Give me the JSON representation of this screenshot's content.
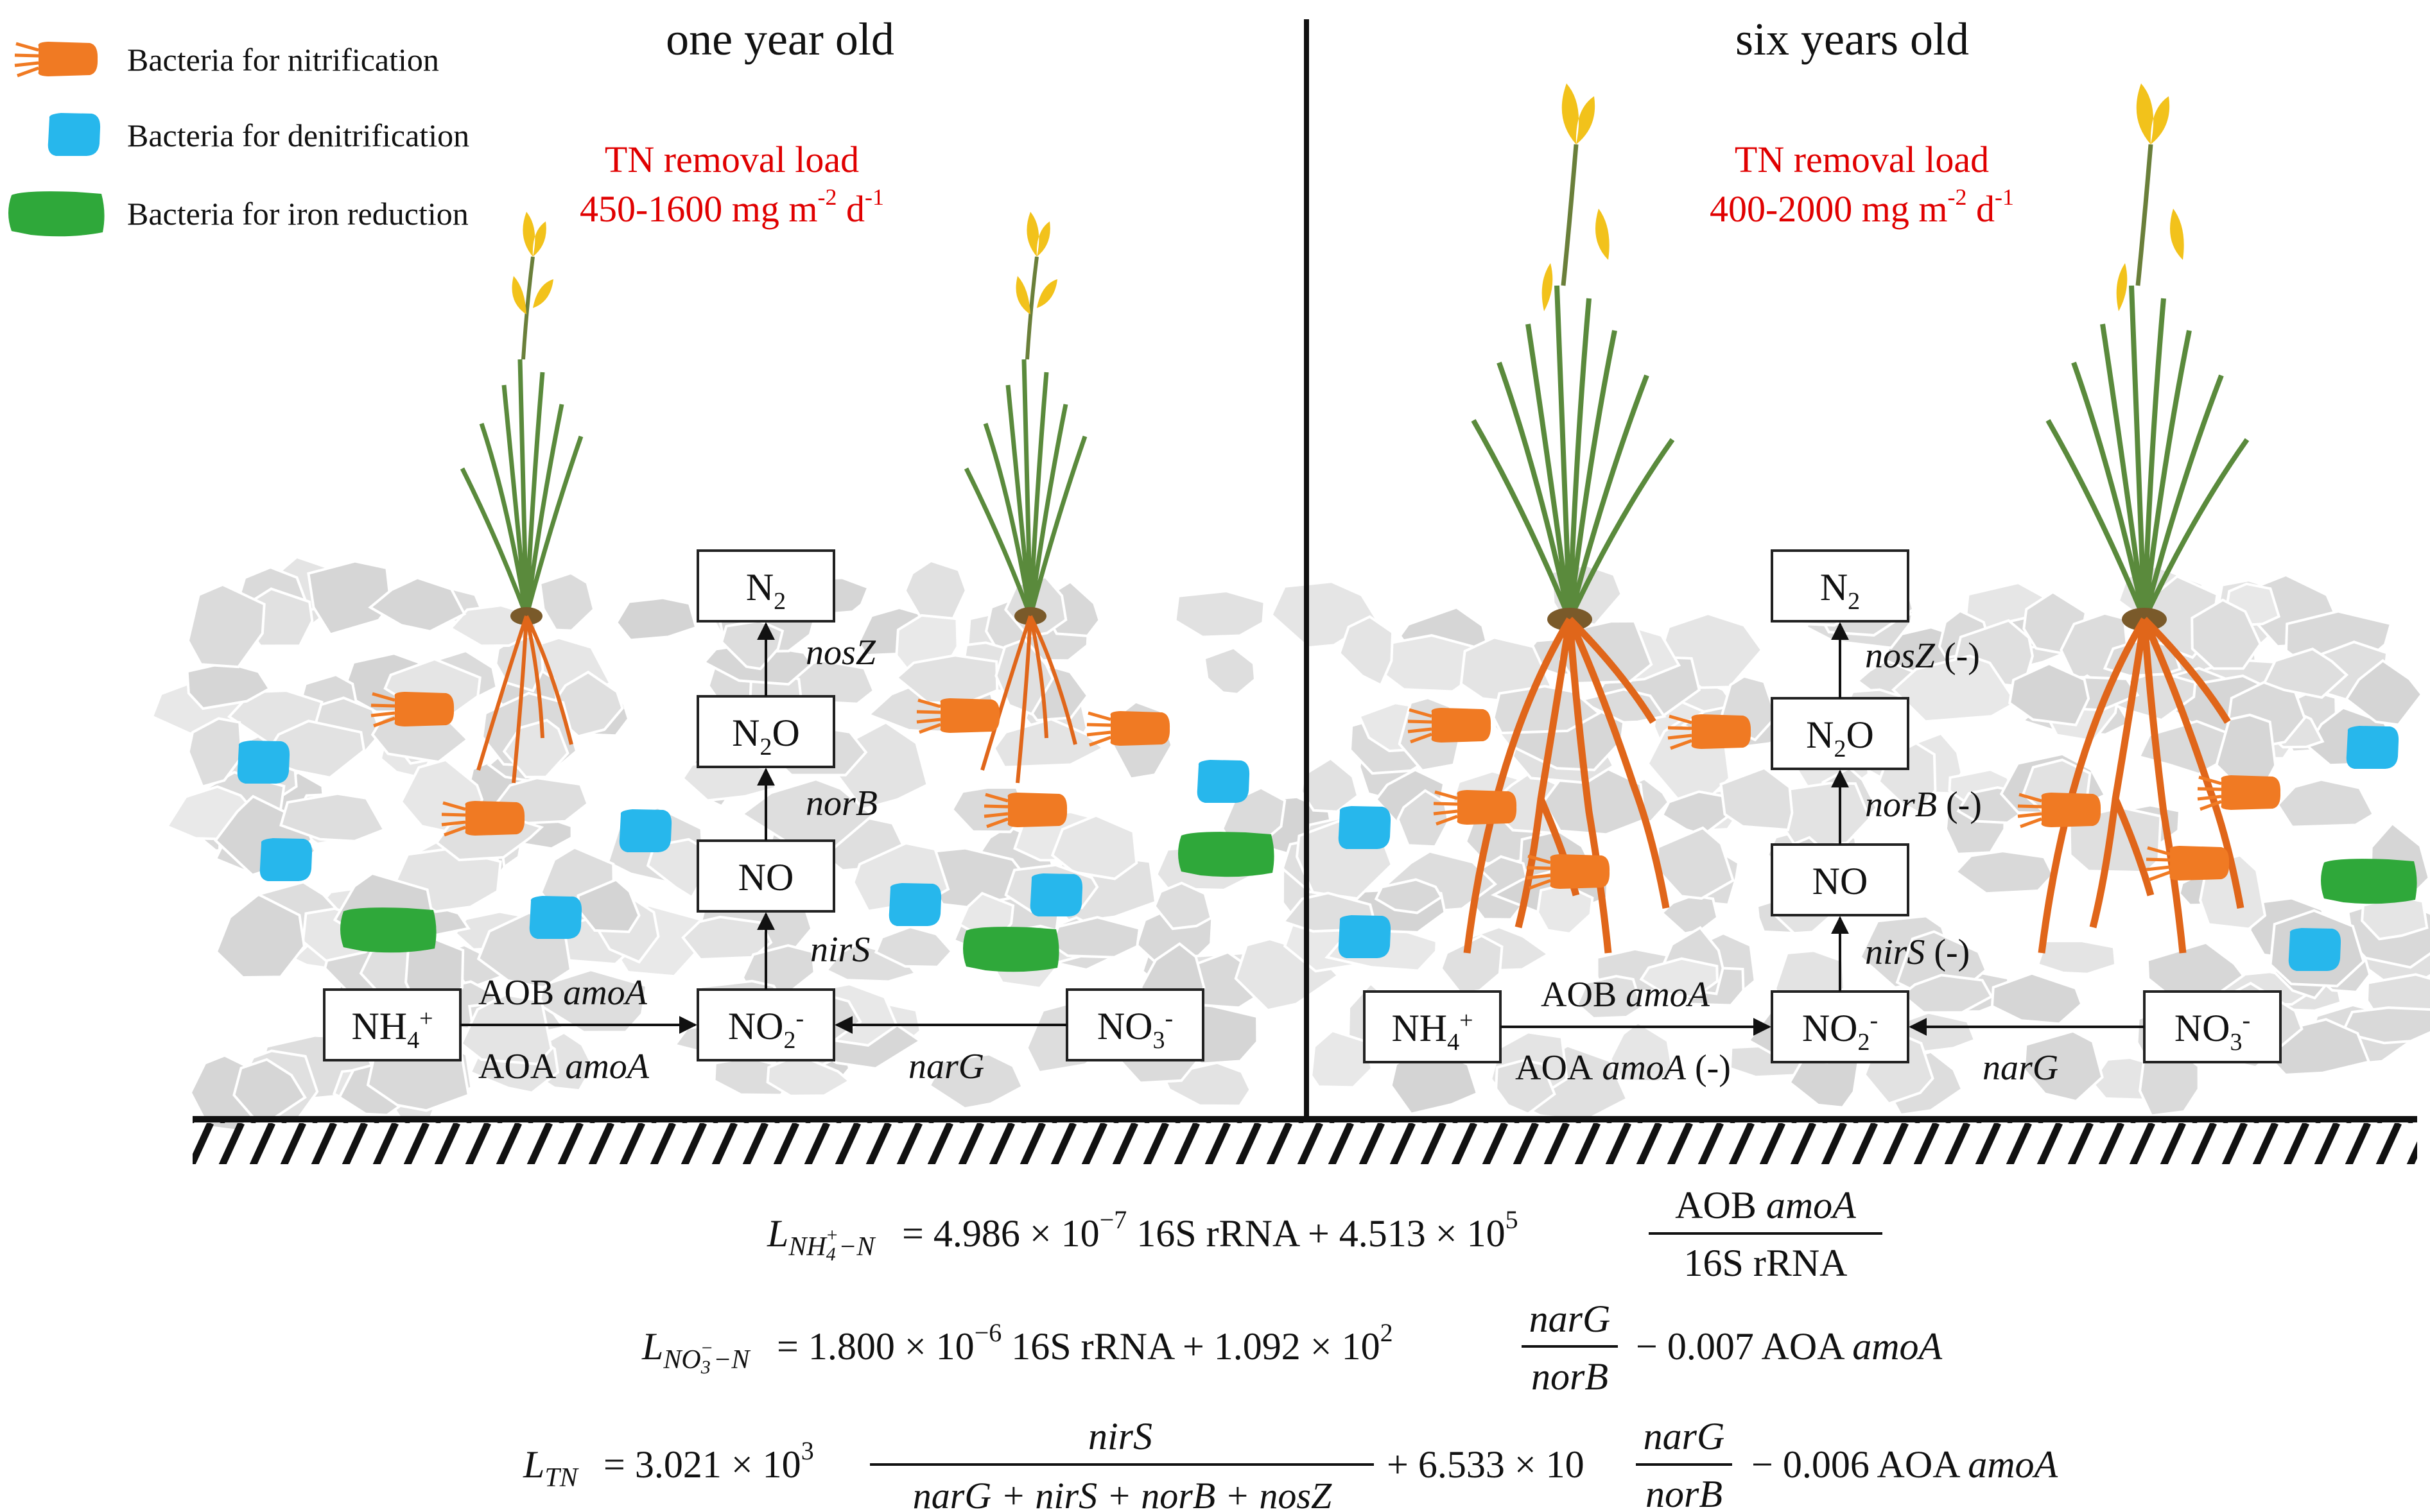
{
  "legend": {
    "items": [
      {
        "label": "Bacteria for nitrification",
        "color": "#f07a23"
      },
      {
        "label": "Bacteria for denitrification",
        "color": "#27b7ec"
      },
      {
        "label": "Bacteria for iron reduction",
        "color": "#2fa83a"
      }
    ]
  },
  "panels": {
    "left": {
      "title": "one year old",
      "load_title": "TN removal load",
      "load_range": "450-1600 mg m",
      "load_exp1": "-2",
      "load_d": " d",
      "load_exp2": "-1",
      "nodes": {
        "n2": "N",
        "n2_sub": "2",
        "n2o_a": "N",
        "n2o_sub": "2",
        "n2o_b": "O",
        "no": "NO",
        "no2": "NO",
        "no2_sub": "2",
        "no2_sup": "-",
        "no3": "NO",
        "no3_sub": "3",
        "no3_sup": "-",
        "nh4": "NH",
        "nh4_sub": "4",
        "nh4_sup": "+"
      },
      "genes": {
        "nosz": "nosZ",
        "norb": "norB",
        "nirs": "nirS",
        "narg": "narG",
        "aob": "AOB",
        "aob_gene": "amoA",
        "aoa": "AOA",
        "aoa_gene": "amoA"
      }
    },
    "right": {
      "title": "six years old",
      "load_title": "TN removal load",
      "load_range": "400-2000 mg m",
      "load_exp1": "-2",
      "load_d": " d",
      "load_exp2": "-1",
      "nodes": {
        "n2": "N",
        "n2_sub": "2",
        "n2o_a": "N",
        "n2o_sub": "2",
        "n2o_b": "O",
        "no": "NO",
        "no2": "NO",
        "no2_sub": "2",
        "no2_sup": "-",
        "no3": "NO",
        "no3_sub": "3",
        "no3_sup": "-",
        "nh4": "NH",
        "nh4_sub": "4",
        "nh4_sup": "+"
      },
      "genes": {
        "nosz": "nosZ",
        "nosz_sign": " (-)",
        "norb": "norB",
        "norb_sign": " (-)",
        "nirs": "nirS",
        "nirs_sign": " (-)",
        "narg": "narG",
        "aob": "AOB",
        "aob_gene": "amoA",
        "aoa": "AOA",
        "aoa_gene": "amoA",
        "aoa_sign": " (-)"
      }
    }
  },
  "equations": {
    "eq1": {
      "lhs": "L",
      "lhs_sub": "NH",
      "lhs_sub4": "4",
      "lhs_subplus": "+",
      "lhs_subn": "−N",
      "rhs1": "= 4.986 × 10",
      "exp1": "−7",
      "rhs2": " 16S rRNA + 4.513 × 10",
      "exp2": "5",
      "num_a": "AOB ",
      "num_b": "amoA",
      "den": "16S rRNA"
    },
    "eq2": {
      "lhs": "L",
      "lhs_sub": "NO",
      "lhs_sub3": "3",
      "lhs_subminus": "−",
      "lhs_subn": "−N",
      "rhs1": "= 1.800 × 10",
      "exp1": "−6",
      "rhs2": " 16S rRNA + 1.092 × 10",
      "exp2": "2",
      "num": "narG",
      "den": "norB",
      "tail_a": "− 0.007 AOA ",
      "tail_b": "amoA"
    },
    "eq3": {
      "lhs": "L",
      "lhs_sub": "TN",
      "rhs1": "= 3.021 × 10",
      "exp1": "3",
      "num1": "nirS",
      "den1": "narG + nirS + norB + nosZ",
      "mid": "+ 6.533 × 10",
      "num2": "narG",
      "den2": "norB",
      "tail_a": "− 0.006 AOA ",
      "tail_b": "amoA"
    }
  }
}
